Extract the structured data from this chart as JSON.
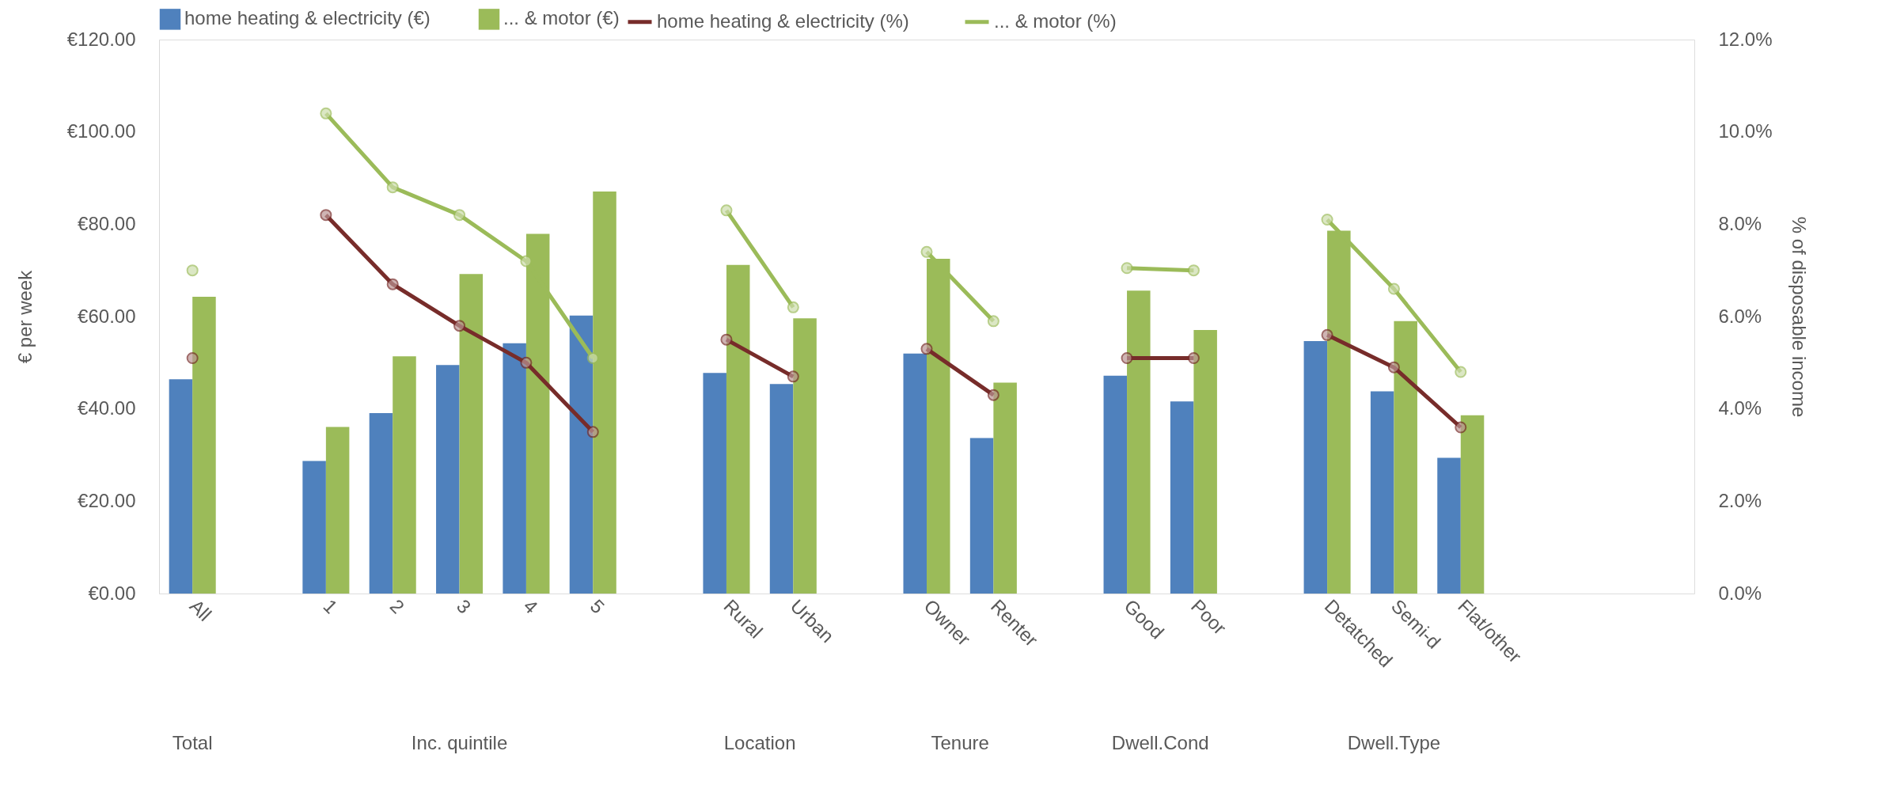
{
  "chart_data": {
    "type": "bar",
    "categories": [
      "All",
      null,
      "1",
      "2",
      "3",
      "4",
      "5",
      null,
      "Rural",
      "Urban",
      null,
      "Owner",
      "Renter",
      null,
      "Good",
      "Poor",
      null,
      "Detatched",
      "Semi-d",
      "Flat/other",
      null,
      null,
      null
    ],
    "series": [
      {
        "name": "home heating & electricity (€)",
        "color": "#4f81bd",
        "values": [
          46.4,
          null,
          28.7,
          39.1,
          49.5,
          54.2,
          60.2,
          null,
          47.8,
          45.4,
          null,
          52.0,
          33.7,
          null,
          47.2,
          41.6,
          null,
          54.7,
          43.8,
          29.4,
          null,
          null,
          null
        ]
      },
      {
        "name": "... & motor (€)",
        "color": "#9bbb59",
        "values": [
          64.3,
          null,
          36.1,
          51.4,
          69.2,
          77.9,
          87.1,
          null,
          71.2,
          59.6,
          null,
          72.5,
          45.7,
          null,
          65.6,
          57.1,
          null,
          78.6,
          59.0,
          38.6,
          null,
          null,
          null
        ]
      },
      {
        "name": "home heating & electricity (%)",
        "type": "line",
        "axis": "y2",
        "color": "#772c2a",
        "values": [
          5.1,
          null,
          8.2,
          6.7,
          5.8,
          5.0,
          3.5,
          null,
          5.5,
          4.7,
          null,
          5.3,
          4.3,
          null,
          5.1,
          5.1,
          null,
          5.6,
          4.9,
          3.6,
          null,
          null,
          null
        ]
      },
      {
        "name": "... & motor (%)",
        "type": "line",
        "axis": "y2",
        "color": "#9bbb59",
        "values": [
          7.0,
          null,
          10.4,
          8.8,
          8.2,
          7.2,
          5.1,
          null,
          8.3,
          6.2,
          null,
          7.4,
          5.9,
          null,
          7.05,
          7.0,
          null,
          8.1,
          6.6,
          4.8,
          null,
          null,
          null
        ]
      }
    ],
    "ylabel": "€ per week",
    "y2label": "% of disposable income",
    "ylim": [
      0,
      120
    ],
    "yticks": [
      {
        "value": 0,
        "label": "€0.00"
      },
      {
        "value": 20,
        "label": "€20.00"
      },
      {
        "value": 40,
        "label": "€40.00"
      },
      {
        "value": 60,
        "label": "€60.00"
      },
      {
        "value": 80,
        "label": "€80.00"
      },
      {
        "value": 100,
        "label": "€100.00"
      },
      {
        "value": 120,
        "label": "€120.00"
      }
    ],
    "y2lim": [
      0,
      12
    ],
    "y2ticks": [
      {
        "value": 0,
        "label": "0.0%"
      },
      {
        "value": 2,
        "label": "2.0%"
      },
      {
        "value": 4,
        "label": "4.0%"
      },
      {
        "value": 6,
        "label": "6.0%"
      },
      {
        "value": 8,
        "label": "8.0%"
      },
      {
        "value": 10,
        "label": "10.0%"
      },
      {
        "value": 12,
        "label": "12.0%"
      }
    ],
    "annotations": [
      "Total",
      "Inc. quintile",
      "Location",
      "Tenure",
      "Dwell.Cond",
      "Dwell.Type"
    ],
    "marker": "circle",
    "line_style": "solid",
    "legend": "top",
    "grid": false
  }
}
